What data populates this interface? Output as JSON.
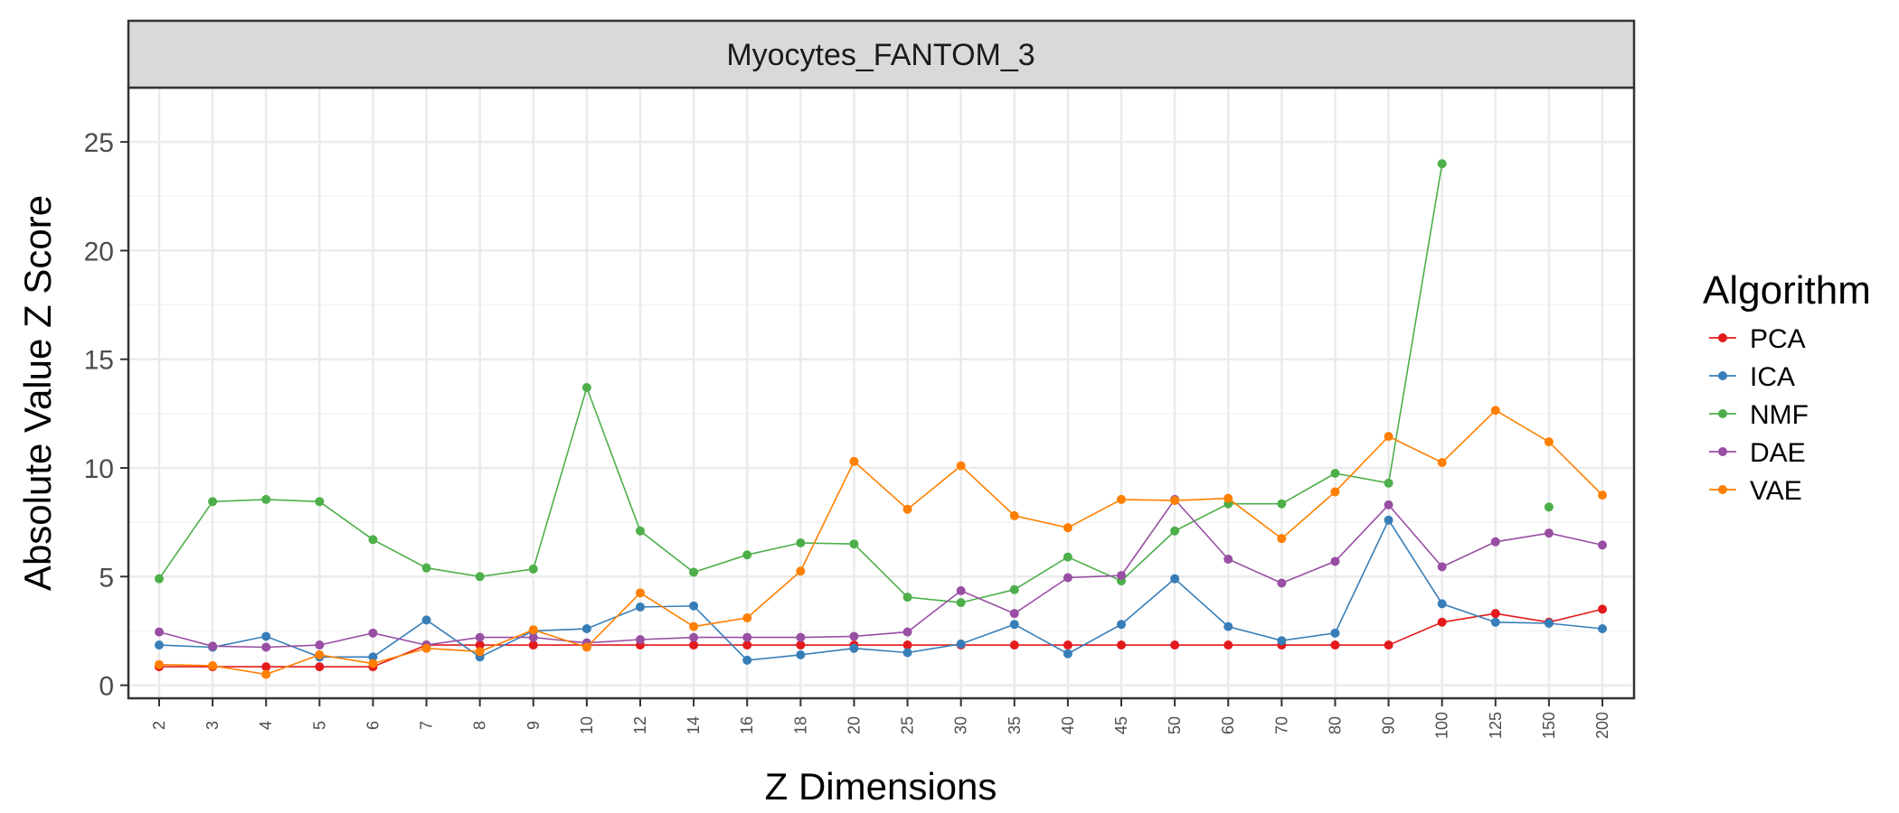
{
  "chart_data": {
    "type": "line",
    "title": "Myocytes_FANTOM_3",
    "xlabel": "Z Dimensions",
    "ylabel": "Absolute Value Z Score",
    "ylim": [
      -0.6,
      27.5
    ],
    "yticks": [
      0,
      5,
      10,
      15,
      20,
      25
    ],
    "categories": [
      "2",
      "3",
      "4",
      "5",
      "6",
      "7",
      "8",
      "9",
      "10",
      "12",
      "14",
      "16",
      "18",
      "20",
      "25",
      "30",
      "35",
      "40",
      "45",
      "50",
      "60",
      "70",
      "80",
      "90",
      "100",
      "125",
      "150",
      "200"
    ],
    "grid": true,
    "legend": {
      "title": "Algorithm",
      "position": "right"
    },
    "series": [
      {
        "name": "PCA",
        "color": "#E41A1C",
        "values": [
          0.85,
          0.85,
          0.85,
          0.85,
          0.85,
          1.85,
          1.85,
          1.85,
          1.85,
          1.85,
          1.85,
          1.85,
          1.85,
          1.85,
          1.85,
          1.85,
          1.85,
          1.85,
          1.85,
          1.85,
          1.85,
          1.85,
          1.85,
          1.85,
          2.9,
          3.3,
          2.9,
          3.5
        ]
      },
      {
        "name": "ICA",
        "color": "#377EB8",
        "values": [
          1.85,
          1.75,
          2.25,
          1.3,
          1.3,
          3.0,
          1.3,
          2.5,
          2.6,
          3.6,
          3.65,
          1.15,
          1.4,
          1.7,
          1.5,
          1.9,
          2.8,
          1.45,
          2.8,
          4.9,
          2.7,
          2.05,
          2.4,
          7.6,
          3.75,
          2.9,
          2.85,
          2.6
        ]
      },
      {
        "name": "NMF",
        "color": "#4DAF4A",
        "values": [
          4.9,
          8.45,
          8.55,
          8.45,
          6.7,
          5.4,
          5.0,
          5.35,
          13.7,
          7.1,
          5.2,
          6.0,
          6.55,
          6.5,
          4.05,
          3.8,
          4.4,
          5.9,
          4.8,
          7.1,
          8.35,
          8.35,
          9.75,
          9.3,
          24.0,
          null,
          8.2,
          null
        ]
      },
      {
        "name": "DAE",
        "color": "#984EA3",
        "values": [
          2.45,
          1.8,
          1.75,
          1.85,
          2.4,
          1.85,
          2.2,
          2.2,
          1.95,
          2.1,
          2.2,
          2.2,
          2.2,
          2.25,
          2.45,
          4.35,
          3.3,
          4.95,
          5.05,
          8.55,
          5.8,
          4.7,
          5.7,
          8.3,
          5.45,
          6.6,
          7.0,
          6.45
        ]
      },
      {
        "name": "VAE",
        "color": "#FF7F00",
        "values": [
          0.95,
          0.9,
          0.5,
          1.4,
          1.0,
          1.7,
          1.55,
          2.55,
          1.75,
          4.25,
          2.7,
          3.1,
          5.25,
          10.3,
          8.1,
          10.1,
          7.8,
          7.25,
          8.55,
          8.5,
          8.6,
          6.75,
          8.9,
          11.45,
          10.25,
          12.65,
          11.2,
          8.75
        ]
      }
    ]
  }
}
